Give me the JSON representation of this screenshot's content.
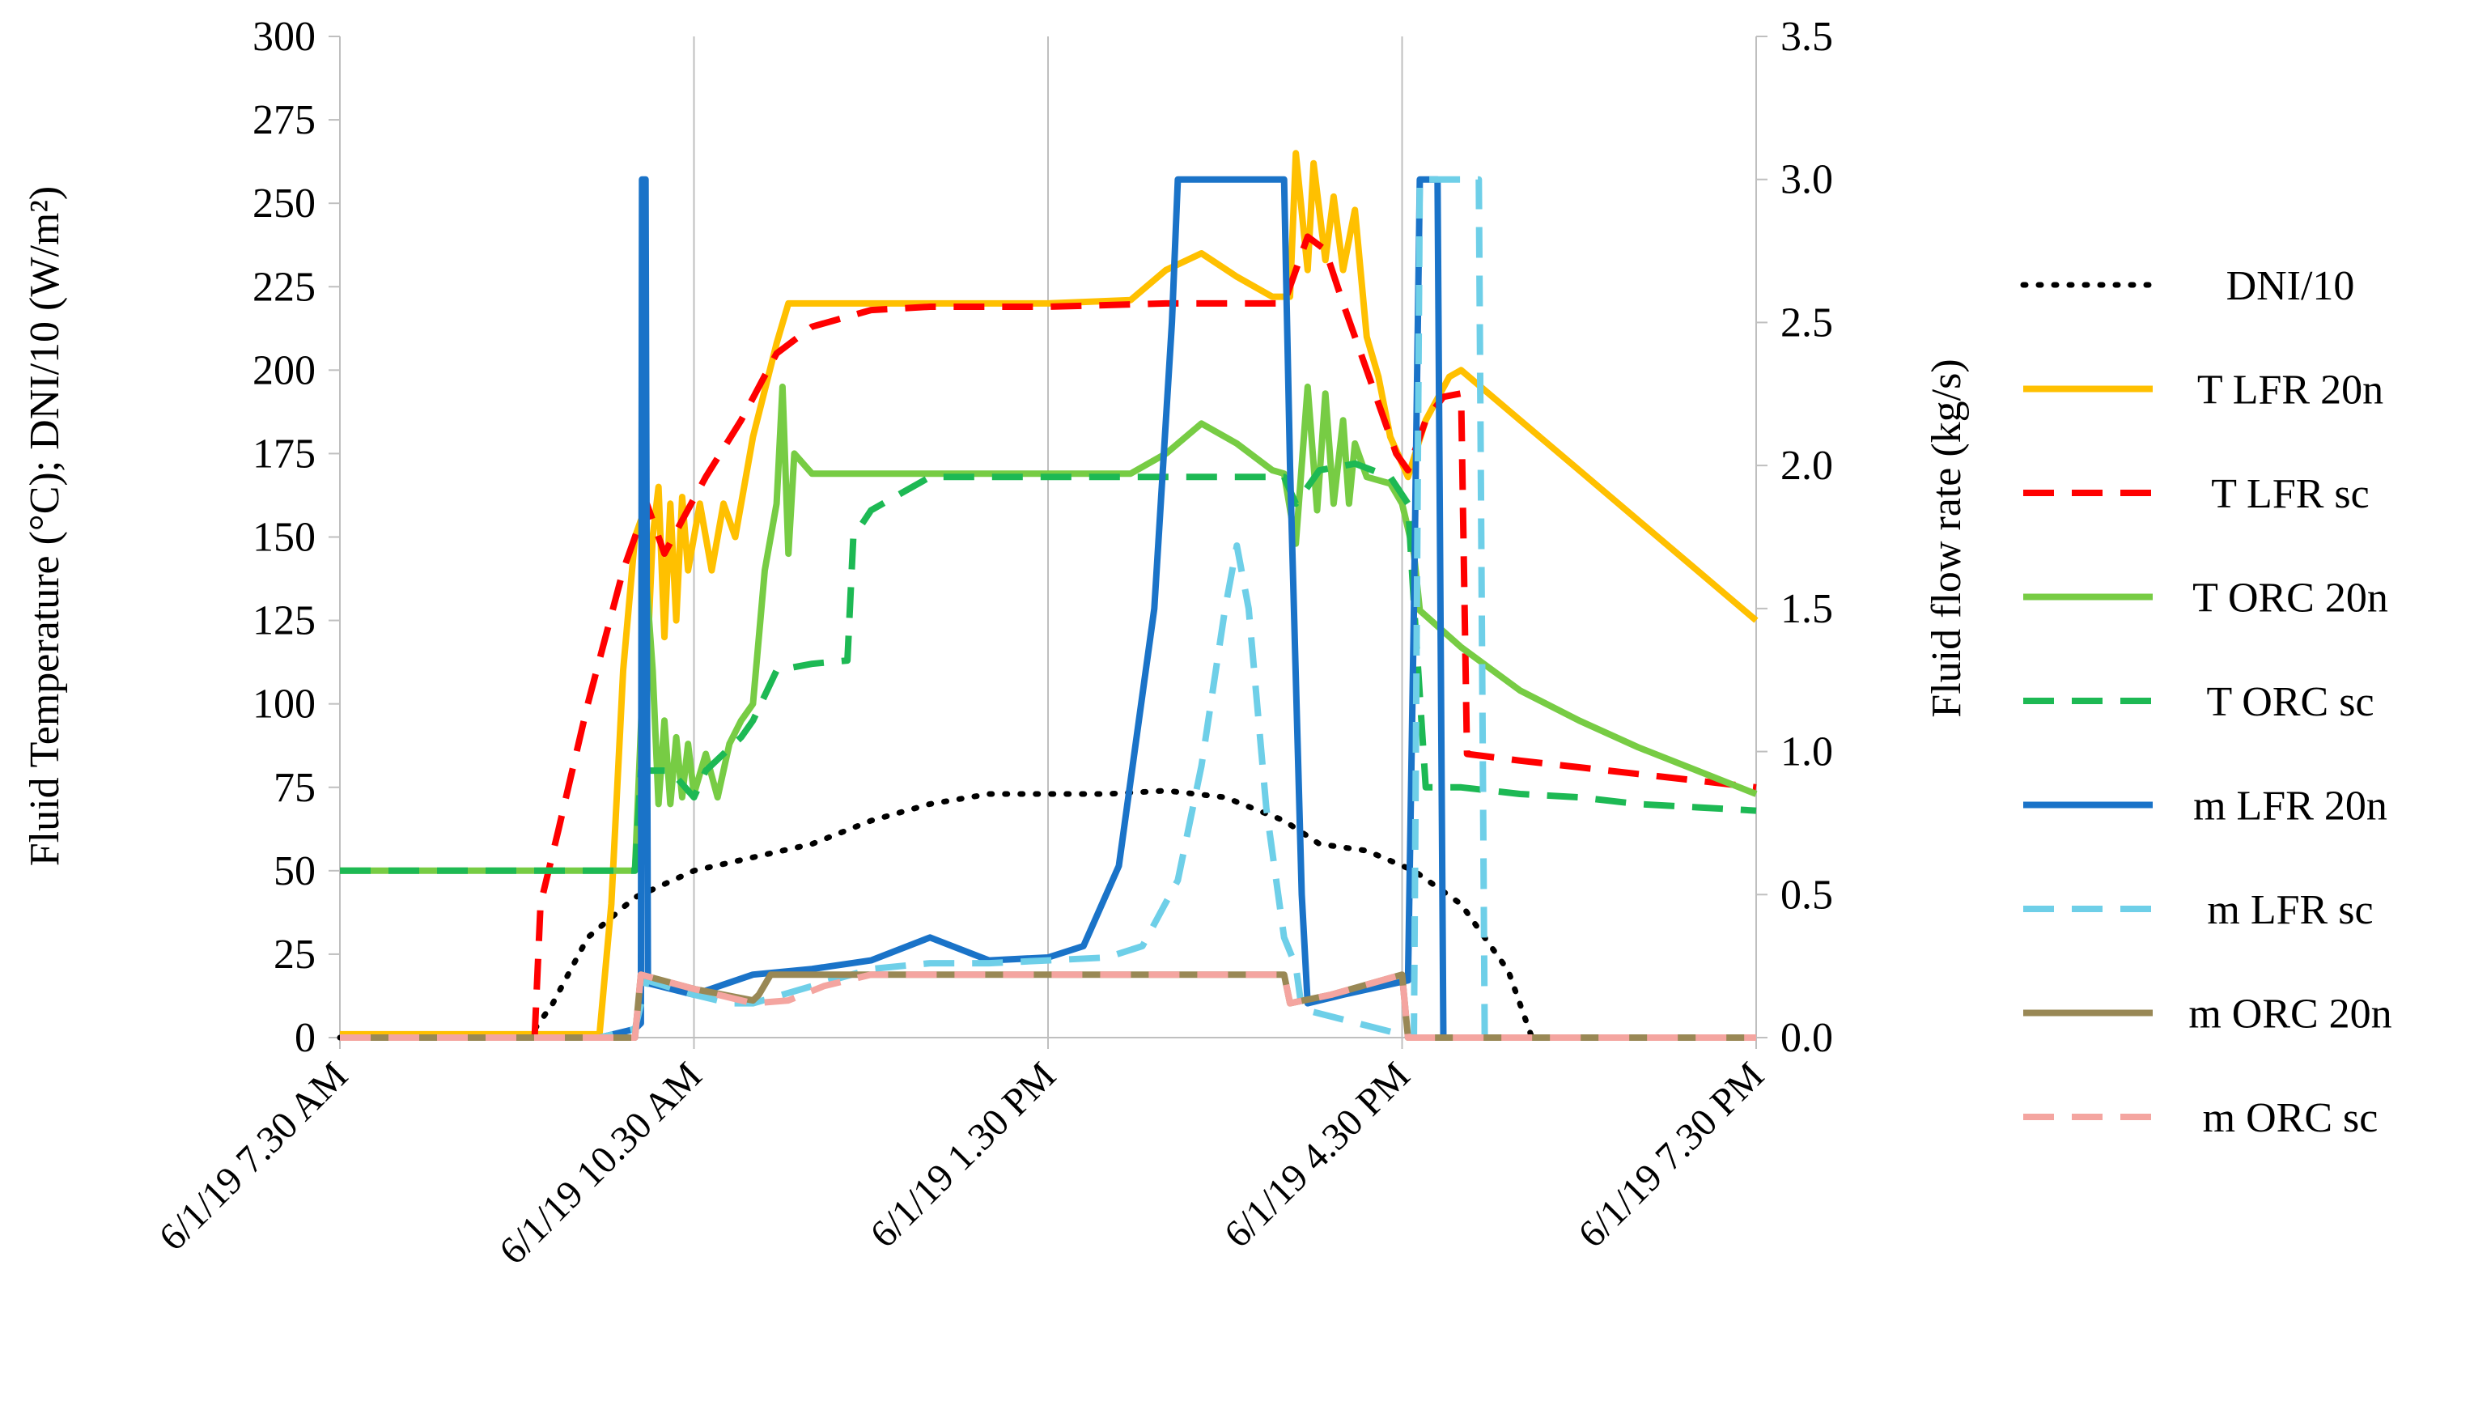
{
  "chart_data": {
    "type": "line",
    "y_left": {
      "label": "Fluid Temperature (°C); DNI/10 (W/m²)",
      "range": [
        0,
        300
      ],
      "ticks": [
        0,
        25,
        50,
        75,
        100,
        125,
        150,
        175,
        200,
        225,
        250,
        275,
        300
      ]
    },
    "y_right": {
      "label": "Fluid flow rate (kg/s)",
      "range": [
        0,
        3.5
      ],
      "ticks": [
        "0.0",
        "0.5",
        "1.0",
        "1.5",
        "2.0",
        "2.5",
        "3.0",
        "3.5"
      ]
    },
    "x_axis": {
      "range_hours": [
        7.5,
        19.5
      ],
      "ticks": [
        {
          "value": 7.5,
          "label": "6/1/19 7.30 AM"
        },
        {
          "value": 10.5,
          "label": "6/1/19 10.30 AM"
        },
        {
          "value": 13.5,
          "label": "6/1/19 1.30 PM"
        },
        {
          "value": 16.5,
          "label": "6/1/19 4.30 PM"
        },
        {
          "value": 19.5,
          "label": "6/1/19 7.30 PM"
        }
      ]
    },
    "grid": "vertical",
    "legend_position": "right",
    "series": [
      {
        "name": "DNI/10",
        "axis": "left",
        "color": "#000000",
        "style": "dotted",
        "points": [
          [
            7.5,
            0
          ],
          [
            9.1,
            0
          ],
          [
            9.3,
            10
          ],
          [
            9.6,
            30
          ],
          [
            10.0,
            42
          ],
          [
            10.5,
            50
          ],
          [
            11.0,
            54
          ],
          [
            11.5,
            58
          ],
          [
            12.0,
            65
          ],
          [
            12.5,
            70
          ],
          [
            13.0,
            73
          ],
          [
            13.5,
            73
          ],
          [
            14.0,
            73
          ],
          [
            14.5,
            74
          ],
          [
            15.0,
            72
          ],
          [
            15.5,
            65
          ],
          [
            15.8,
            58
          ],
          [
            16.2,
            56
          ],
          [
            16.6,
            50
          ],
          [
            17.0,
            40
          ],
          [
            17.4,
            20
          ],
          [
            17.6,
            0
          ],
          [
            19.5,
            0
          ]
        ]
      },
      {
        "name": "T LFR 20n",
        "axis": "left",
        "color": "#FFC000",
        "style": "solid",
        "points": [
          [
            7.5,
            1
          ],
          [
            9.7,
            1
          ],
          [
            9.8,
            40
          ],
          [
            9.9,
            110
          ],
          [
            10.0,
            150
          ],
          [
            10.05,
            155
          ],
          [
            10.1,
            110
          ],
          [
            10.15,
            150
          ],
          [
            10.2,
            165
          ],
          [
            10.25,
            120
          ],
          [
            10.3,
            160
          ],
          [
            10.35,
            125
          ],
          [
            10.4,
            162
          ],
          [
            10.45,
            140
          ],
          [
            10.55,
            160
          ],
          [
            10.65,
            140
          ],
          [
            10.75,
            160
          ],
          [
            10.85,
            150
          ],
          [
            11.0,
            180
          ],
          [
            11.2,
            208
          ],
          [
            11.3,
            220
          ],
          [
            11.5,
            220
          ],
          [
            12.5,
            220
          ],
          [
            13.5,
            220
          ],
          [
            14.2,
            221
          ],
          [
            14.5,
            230
          ],
          [
            14.8,
            235
          ],
          [
            15.1,
            228
          ],
          [
            15.4,
            222
          ],
          [
            15.55,
            222
          ],
          [
            15.6,
            265
          ],
          [
            15.7,
            230
          ],
          [
            15.75,
            262
          ],
          [
            15.85,
            233
          ],
          [
            15.92,
            252
          ],
          [
            16.0,
            230
          ],
          [
            16.1,
            248
          ],
          [
            16.2,
            210
          ],
          [
            16.3,
            198
          ],
          [
            16.4,
            180
          ],
          [
            16.55,
            168
          ],
          [
            16.7,
            185
          ],
          [
            16.9,
            198
          ],
          [
            17.0,
            200
          ],
          [
            17.5,
            185
          ],
          [
            18.0,
            170
          ],
          [
            18.5,
            155
          ],
          [
            19.0,
            140
          ],
          [
            19.5,
            125
          ]
        ]
      },
      {
        "name": "T LFR sc",
        "axis": "left",
        "color": "#FF0000",
        "style": "dashed",
        "points": [
          [
            7.5,
            0
          ],
          [
            9.15,
            0
          ],
          [
            9.2,
            40
          ],
          [
            9.35,
            62
          ],
          [
            9.6,
            100
          ],
          [
            9.9,
            140
          ],
          [
            10.1,
            160
          ],
          [
            10.25,
            145
          ],
          [
            10.4,
            155
          ],
          [
            10.6,
            168
          ],
          [
            10.9,
            185
          ],
          [
            11.2,
            205
          ],
          [
            11.5,
            213
          ],
          [
            12.0,
            218
          ],
          [
            12.5,
            219
          ],
          [
            13.5,
            219
          ],
          [
            14.5,
            220
          ],
          [
            15.5,
            220
          ],
          [
            15.7,
            240
          ],
          [
            15.85,
            236
          ],
          [
            16.0,
            220
          ],
          [
            16.2,
            200
          ],
          [
            16.45,
            175
          ],
          [
            16.55,
            170
          ],
          [
            16.7,
            185
          ],
          [
            16.85,
            192
          ],
          [
            17.0,
            193
          ],
          [
            17.05,
            85
          ],
          [
            17.5,
            83
          ],
          [
            18.0,
            81
          ],
          [
            18.5,
            79
          ],
          [
            19.0,
            77
          ],
          [
            19.5,
            75
          ]
        ]
      },
      {
        "name": "T ORC 20n",
        "axis": "left",
        "color": "#77CC44",
        "style": "solid",
        "points": [
          [
            7.5,
            50
          ],
          [
            10.0,
            50
          ],
          [
            10.1,
            135
          ],
          [
            10.15,
            110
          ],
          [
            10.2,
            70
          ],
          [
            10.25,
            95
          ],
          [
            10.3,
            70
          ],
          [
            10.35,
            90
          ],
          [
            10.4,
            72
          ],
          [
            10.45,
            88
          ],
          [
            10.5,
            73
          ],
          [
            10.6,
            85
          ],
          [
            10.7,
            72
          ],
          [
            10.8,
            88
          ],
          [
            10.9,
            95
          ],
          [
            11.0,
            100
          ],
          [
            11.1,
            140
          ],
          [
            11.2,
            160
          ],
          [
            11.25,
            195
          ],
          [
            11.3,
            145
          ],
          [
            11.35,
            175
          ],
          [
            11.5,
            169
          ],
          [
            13.5,
            169
          ],
          [
            14.2,
            169
          ],
          [
            14.5,
            175
          ],
          [
            14.8,
            184
          ],
          [
            15.1,
            178
          ],
          [
            15.4,
            170
          ],
          [
            15.5,
            169
          ],
          [
            15.6,
            148
          ],
          [
            15.7,
            195
          ],
          [
            15.78,
            158
          ],
          [
            15.85,
            193
          ],
          [
            15.92,
            160
          ],
          [
            16.0,
            185
          ],
          [
            16.05,
            160
          ],
          [
            16.1,
            178
          ],
          [
            16.2,
            168
          ],
          [
            16.4,
            166
          ],
          [
            16.5,
            160
          ],
          [
            16.6,
            145
          ],
          [
            16.65,
            128
          ],
          [
            17.0,
            117
          ],
          [
            17.5,
            104
          ],
          [
            18.0,
            95
          ],
          [
            18.5,
            87
          ],
          [
            19.0,
            80
          ],
          [
            19.5,
            73
          ]
        ]
      },
      {
        "name": "T ORC sc",
        "axis": "left",
        "color": "#1DB954",
        "style": "dashed",
        "points": [
          [
            7.5,
            50
          ],
          [
            10.0,
            50
          ],
          [
            10.05,
            80
          ],
          [
            10.3,
            80
          ],
          [
            10.5,
            72
          ],
          [
            10.6,
            80
          ],
          [
            10.9,
            90
          ],
          [
            11.0,
            95
          ],
          [
            11.2,
            110
          ],
          [
            11.5,
            112
          ],
          [
            11.8,
            113
          ],
          [
            11.85,
            150
          ],
          [
            12.0,
            158
          ],
          [
            12.2,
            162
          ],
          [
            12.5,
            168
          ],
          [
            13.5,
            168
          ],
          [
            14.5,
            168
          ],
          [
            15.5,
            168
          ],
          [
            15.6,
            160
          ],
          [
            15.7,
            165
          ],
          [
            15.8,
            170
          ],
          [
            16.1,
            172
          ],
          [
            16.4,
            168
          ],
          [
            16.55,
            160
          ],
          [
            16.6,
            130
          ],
          [
            16.7,
            75
          ],
          [
            17.0,
            75
          ],
          [
            17.5,
            73
          ],
          [
            18.0,
            72
          ],
          [
            18.5,
            70
          ],
          [
            19.0,
            69
          ],
          [
            19.5,
            68
          ]
        ]
      },
      {
        "name": "m LFR 20n",
        "axis": "right",
        "color": "#1A73C8",
        "style": "solid",
        "points": [
          [
            7.5,
            0
          ],
          [
            9.7,
            0
          ],
          [
            10.0,
            0.03
          ],
          [
            10.05,
            0.05
          ],
          [
            10.06,
            3.0
          ],
          [
            10.09,
            3.0
          ],
          [
            10.11,
            0.19
          ],
          [
            10.5,
            0.15
          ],
          [
            11.0,
            0.22
          ],
          [
            11.5,
            0.24
          ],
          [
            12.0,
            0.27
          ],
          [
            12.5,
            0.35
          ],
          [
            13.0,
            0.27
          ],
          [
            13.5,
            0.28
          ],
          [
            13.8,
            0.32
          ],
          [
            14.1,
            0.6
          ],
          [
            14.4,
            1.5
          ],
          [
            14.55,
            2.5
          ],
          [
            14.6,
            3.0
          ],
          [
            15.5,
            3.0
          ],
          [
            15.55,
            2.0
          ],
          [
            15.65,
            0.5
          ],
          [
            15.7,
            0.12
          ],
          [
            16.0,
            0.15
          ],
          [
            16.55,
            0.2
          ],
          [
            16.6,
            1.5
          ],
          [
            16.65,
            3.0
          ],
          [
            16.8,
            3.0
          ],
          [
            16.85,
            0.0
          ],
          [
            19.5,
            0
          ]
        ]
      },
      {
        "name": "m LFR sc",
        "axis": "right",
        "color": "#6ECFE8",
        "style": "dashed",
        "points": [
          [
            7.5,
            0
          ],
          [
            9.7,
            0
          ],
          [
            10.0,
            0.03
          ],
          [
            10.1,
            0.2
          ],
          [
            10.5,
            0.15
          ],
          [
            10.8,
            0.12
          ],
          [
            11.0,
            0.12
          ],
          [
            11.5,
            0.18
          ],
          [
            12.0,
            0.24
          ],
          [
            12.5,
            0.26
          ],
          [
            13.0,
            0.26
          ],
          [
            13.5,
            0.27
          ],
          [
            14.0,
            0.28
          ],
          [
            14.3,
            0.32
          ],
          [
            14.6,
            0.55
          ],
          [
            14.8,
            0.95
          ],
          [
            15.0,
            1.5
          ],
          [
            15.1,
            1.72
          ],
          [
            15.2,
            1.5
          ],
          [
            15.35,
            0.8
          ],
          [
            15.5,
            0.35
          ],
          [
            15.6,
            0.25
          ],
          [
            15.65,
            0.1
          ],
          [
            16.6,
            0.0
          ],
          [
            16.65,
            3.0
          ],
          [
            17.15,
            3.0
          ],
          [
            17.2,
            0.0
          ],
          [
            19.5,
            0
          ]
        ]
      },
      {
        "name": "m ORC 20n",
        "axis": "right",
        "color": "#998855",
        "style": "solid",
        "points": [
          [
            7.5,
            0
          ],
          [
            10.0,
            0
          ],
          [
            10.05,
            0.22
          ],
          [
            10.5,
            0.17
          ],
          [
            11.0,
            0.13
          ],
          [
            11.05,
            0.15
          ],
          [
            11.15,
            0.22
          ],
          [
            13.5,
            0.22
          ],
          [
            15.0,
            0.22
          ],
          [
            15.5,
            0.22
          ],
          [
            15.55,
            0.12
          ],
          [
            15.9,
            0.15
          ],
          [
            16.5,
            0.22
          ],
          [
            16.55,
            0.0
          ],
          [
            19.5,
            0
          ]
        ]
      },
      {
        "name": "m ORC sc",
        "axis": "right",
        "color": "#F4A5A0",
        "style": "dashed",
        "points": [
          [
            7.5,
            0
          ],
          [
            10.0,
            0
          ],
          [
            10.05,
            0.22
          ],
          [
            10.5,
            0.17
          ],
          [
            11.0,
            0.12
          ],
          [
            11.3,
            0.13
          ],
          [
            11.6,
            0.18
          ],
          [
            12.0,
            0.22
          ],
          [
            13.5,
            0.22
          ],
          [
            15.0,
            0.22
          ],
          [
            15.5,
            0.22
          ],
          [
            15.55,
            0.12
          ],
          [
            15.9,
            0.15
          ],
          [
            16.5,
            0.22
          ],
          [
            16.55,
            0.0
          ],
          [
            19.5,
            0
          ]
        ]
      }
    ]
  }
}
